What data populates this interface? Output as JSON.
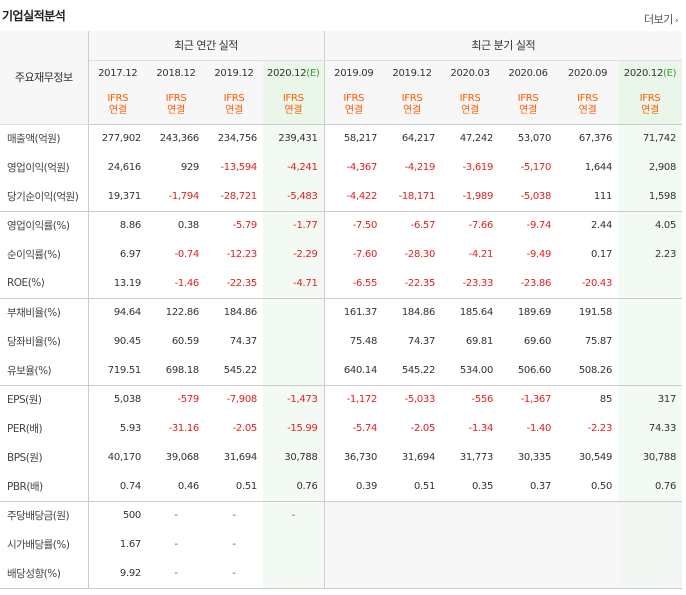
{
  "header": {
    "title": "기업실적분석",
    "more_label": "더보기",
    "more_arrow": "›"
  },
  "table": {
    "row_header": "주요재무정보",
    "group_annual": "최근 연간 실적",
    "group_quarter": "최근 분기 실적",
    "periods": [
      "2017.12",
      "2018.12",
      "2019.12",
      "2020.12",
      "2019.09",
      "2019.12",
      "2020.03",
      "2020.06",
      "2020.09",
      "2020.12"
    ],
    "estimate_mark": "(E)",
    "standard_top": "IFRS",
    "standard_bottom": "연결",
    "rows": [
      {
        "label": "매출액(억원)",
        "values": [
          "277,902",
          "243,366",
          "234,756",
          "239,431",
          "58,217",
          "64,217",
          "47,242",
          "53,070",
          "67,376",
          "71,742"
        ]
      },
      {
        "label": "영업이익(억원)",
        "values": [
          "24,616",
          "929",
          "-13,594",
          "-4,241",
          "-4,367",
          "-4,219",
          "-3,619",
          "-5,170",
          "1,644",
          "2,908"
        ]
      },
      {
        "label": "당기순이익(억원)",
        "values": [
          "19,371",
          "-1,794",
          "-28,721",
          "-5,483",
          "-4,422",
          "-18,171",
          "-1,989",
          "-5,038",
          "111",
          "1,598"
        ]
      },
      {
        "label": "영업이익률(%)",
        "values": [
          "8.86",
          "0.38",
          "-5.79",
          "-1.77",
          "-7.50",
          "-6.57",
          "-7.66",
          "-9.74",
          "2.44",
          "4.05"
        ]
      },
      {
        "label": "순이익률(%)",
        "values": [
          "6.97",
          "-0.74",
          "-12.23",
          "-2.29",
          "-7.60",
          "-28.30",
          "-4.21",
          "-9.49",
          "0.17",
          "2.23"
        ]
      },
      {
        "label": "ROE(%)",
        "values": [
          "13.19",
          "-1.46",
          "-22.35",
          "-4.71",
          "-6.55",
          "-22.35",
          "-23.33",
          "-23.86",
          "-20.43",
          ""
        ]
      },
      {
        "label": "부채비율(%)",
        "values": [
          "94.64",
          "122.86",
          "184.86",
          "",
          "161.37",
          "184.86",
          "185.64",
          "189.69",
          "191.58",
          ""
        ]
      },
      {
        "label": "당좌비율(%)",
        "values": [
          "90.45",
          "60.59",
          "74.37",
          "",
          "75.48",
          "74.37",
          "69.81",
          "69.60",
          "75.87",
          ""
        ]
      },
      {
        "label": "유보율(%)",
        "values": [
          "719.51",
          "698.18",
          "545.22",
          "",
          "640.14",
          "545.22",
          "534.00",
          "506.60",
          "508.26",
          ""
        ]
      },
      {
        "label": "EPS(원)",
        "values": [
          "5,038",
          "-579",
          "-7,908",
          "-1,473",
          "-1,172",
          "-5,033",
          "-556",
          "-1,367",
          "85",
          "317"
        ]
      },
      {
        "label": "PER(배)",
        "values": [
          "5.93",
          "-31.16",
          "-2.05",
          "-15.99",
          "-5.74",
          "-2.05",
          "-1.34",
          "-1.40",
          "-2.23",
          "74.33"
        ]
      },
      {
        "label": "BPS(원)",
        "values": [
          "40,170",
          "39,068",
          "31,694",
          "30,788",
          "36,730",
          "31,694",
          "31,773",
          "30,335",
          "30,549",
          "30,788"
        ]
      },
      {
        "label": "PBR(배)",
        "values": [
          "0.74",
          "0.46",
          "0.51",
          "0.76",
          "0.39",
          "0.51",
          "0.35",
          "0.37",
          "0.50",
          "0.76"
        ]
      },
      {
        "label": "주당배당금(원)",
        "values": [
          "500",
          "-",
          "-",
          "-",
          "",
          "",
          "",
          "",
          "",
          ""
        ]
      },
      {
        "label": "시가배당률(%)",
        "values": [
          "1.67",
          "-",
          "-",
          "",
          "",
          "",
          "",
          "",
          "",
          ""
        ]
      },
      {
        "label": "배당성향(%)",
        "values": [
          "9.92",
          "-",
          "-",
          "",
          "",
          "",
          "",
          "",
          "",
          ""
        ]
      }
    ]
  },
  "colors": {
    "negative": "#e02020",
    "standard": "#ff5a00",
    "estimate": "#3a9a3a"
  }
}
